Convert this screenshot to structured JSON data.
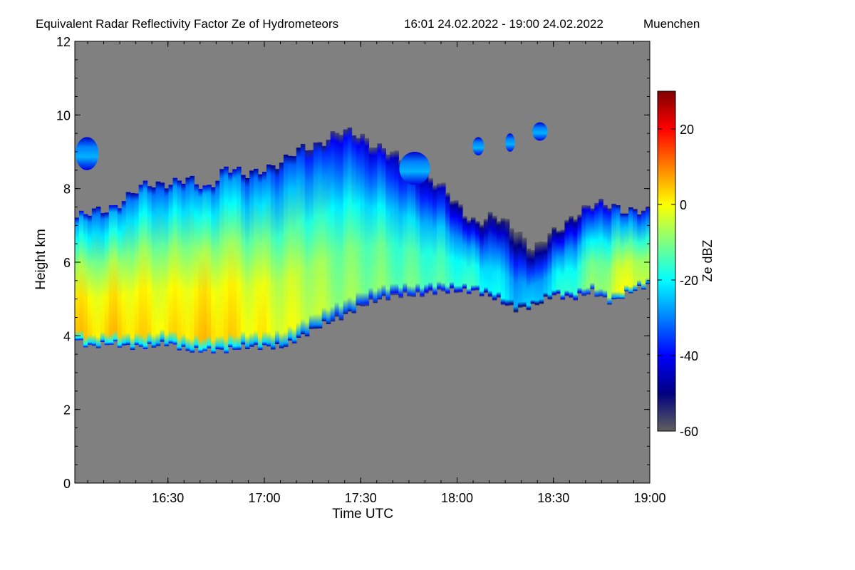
{
  "chart_data": {
    "type": "heatmap",
    "title": "Equivalent Radar Reflectivity Factor Ze of Hydrometeors",
    "period": "16:01 24.02.2022 - 19:00 24.02.2022",
    "location": "Muenchen",
    "xlabel": "Time UTC",
    "ylabel": "Height km",
    "x_range_hours": [
      16.0167,
      19.0
    ],
    "x_ticks": [
      {
        "value": 16.5,
        "label": "16:30"
      },
      {
        "value": 17.0,
        "label": "17:00"
      },
      {
        "value": 17.5,
        "label": "17:30"
      },
      {
        "value": 18.0,
        "label": "18:00"
      },
      {
        "value": 18.5,
        "label": "18:30"
      },
      {
        "value": 19.0,
        "label": "19:00"
      }
    ],
    "ylim": [
      0,
      12
    ],
    "y_ticks": [
      0,
      2,
      4,
      6,
      8,
      10,
      12
    ],
    "background_color": "#808080",
    "colorbar": {
      "label": "Ze dBZ",
      "range": [
        -60,
        30
      ],
      "ticks": [
        -60,
        -40,
        -20,
        0,
        20
      ],
      "colors": [
        "#606060",
        "#000080",
        "#0000ff",
        "#0080ff",
        "#00ffff",
        "#80ff80",
        "#ffff00",
        "#ff8000",
        "#ff0000",
        "#800000"
      ]
    },
    "cloud_layer": {
      "time_hours": [
        16.02,
        16.1,
        16.2,
        16.3,
        16.4,
        16.5,
        16.6,
        16.7,
        16.8,
        16.9,
        17.0,
        17.1,
        17.2,
        17.3,
        17.4,
        17.5,
        17.6,
        17.7,
        17.8,
        17.9,
        18.0,
        18.1,
        18.2,
        18.3,
        18.4,
        18.5,
        18.6,
        18.7,
        18.8,
        18.9,
        19.0
      ],
      "base_km": [
        3.9,
        3.7,
        3.8,
        3.7,
        3.7,
        3.8,
        3.6,
        3.6,
        3.6,
        3.7,
        3.7,
        3.7,
        4.0,
        4.3,
        4.5,
        4.8,
        5.0,
        5.1,
        5.1,
        5.2,
        5.2,
        5.2,
        5.0,
        4.7,
        4.8,
        5.1,
        5.0,
        5.2,
        4.9,
        5.2,
        5.4
      ],
      "top_km": [
        7.2,
        7.3,
        7.5,
        7.8,
        8.1,
        8.2,
        8.2,
        8.0,
        8.6,
        8.3,
        8.6,
        8.7,
        9.1,
        9.3,
        9.5,
        9.5,
        9.1,
        8.8,
        8.5,
        8.1,
        7.6,
        7.1,
        7.2,
        7.0,
        6.3,
        6.8,
        7.3,
        7.5,
        7.6,
        7.4,
        7.3
      ],
      "peak_dbz": [
        5,
        2,
        4,
        3,
        2,
        1,
        3,
        4,
        3,
        1,
        0,
        -2,
        -3,
        -6,
        -8,
        -9,
        -10,
        -12,
        -12,
        -14,
        -15,
        -17,
        -20,
        -24,
        -26,
        -20,
        -15,
        -10,
        -5,
        0,
        -8
      ]
    },
    "upper_patches": [
      {
        "t0": 16.02,
        "t1": 16.14,
        "base_km": 8.5,
        "top_km": 9.4
      },
      {
        "t0": 17.7,
        "t1": 17.86,
        "base_km": 8.1,
        "top_km": 9.0
      },
      {
        "t0": 18.08,
        "t1": 18.14,
        "base_km": 8.9,
        "top_km": 9.4
      },
      {
        "t0": 18.25,
        "t1": 18.3,
        "base_km": 9.0,
        "top_km": 9.5
      },
      {
        "t0": 18.39,
        "t1": 18.47,
        "base_km": 9.3,
        "top_km": 9.8
      }
    ]
  }
}
